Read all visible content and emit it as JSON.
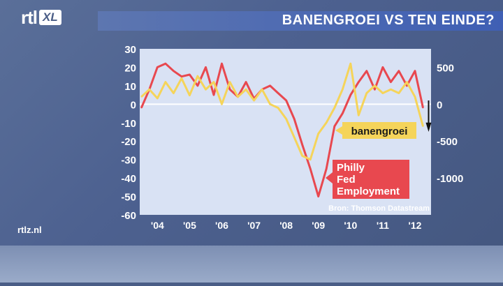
{
  "header": {
    "logo_main": "rtl",
    "logo_badge": "XL",
    "title": "BANENGROEI VS TEN EINDE?"
  },
  "watermark": "rtlz.nl",
  "colors": {
    "plot_bg": "#d9e2f4",
    "philly_line": "#e8484f",
    "banengroei_line": "#f5d45a",
    "philly_label_bg": "#e8484f",
    "banengroei_label_bg": "#f5d45a",
    "label_text_philly": "#ffffff",
    "label_text_banen": "#1a1a1a"
  },
  "chart_data": {
    "type": "line",
    "title": "BANENGROEI VS TEN EINDE?",
    "source": "Bron: Thomson Datastream",
    "grid": false,
    "x_ticks": [
      "'04",
      "'05",
      "'06",
      "'07",
      "'08",
      "'09",
      "'10",
      "'11",
      "'12"
    ],
    "x_tick_values": [
      2004,
      2005,
      2006,
      2007,
      2008,
      2009,
      2010,
      2011,
      2012
    ],
    "xlim": [
      2003.45,
      2012.5
    ],
    "y_left": {
      "ticks": [
        30,
        20,
        10,
        0,
        -10,
        -20,
        -30,
        -40,
        -50,
        -60
      ],
      "ylim": [
        -60,
        30
      ]
    },
    "y_right": {
      "ticks": [
        500,
        0,
        -500,
        -1000
      ],
      "ylim": [
        -1500,
        750
      ]
    },
    "zero_line": true,
    "series": [
      {
        "name": "Philly Fed Employment",
        "axis": "left",
        "x": [
          2003.5,
          2003.75,
          2004.0,
          2004.25,
          2004.5,
          2004.75,
          2005.0,
          2005.25,
          2005.5,
          2005.75,
          2006.0,
          2006.25,
          2006.5,
          2006.75,
          2007.0,
          2007.25,
          2007.5,
          2007.75,
          2008.0,
          2008.25,
          2008.5,
          2008.75,
          2009.0,
          2009.25,
          2009.5,
          2009.75,
          2010.0,
          2010.25,
          2010.5,
          2010.75,
          2011.0,
          2011.25,
          2011.5,
          2011.75,
          2012.0,
          2012.25
        ],
        "y": [
          -2,
          8,
          20,
          22,
          18,
          15,
          16,
          10,
          20,
          5,
          22,
          8,
          4,
          12,
          3,
          8,
          10,
          6,
          2,
          -8,
          -22,
          -35,
          -50,
          -35,
          -12,
          -5,
          5,
          12,
          18,
          8,
          20,
          12,
          18,
          10,
          18,
          -2
        ]
      },
      {
        "name": "banengroei",
        "axis": "right",
        "x": [
          2003.5,
          2003.75,
          2004.0,
          2004.25,
          2004.5,
          2004.75,
          2005.0,
          2005.25,
          2005.5,
          2005.75,
          2006.0,
          2006.25,
          2006.5,
          2006.75,
          2007.0,
          2007.25,
          2007.5,
          2007.75,
          2008.0,
          2008.25,
          2008.5,
          2008.75,
          2009.0,
          2009.25,
          2009.5,
          2009.75,
          2010.0,
          2010.25,
          2010.5,
          2010.75,
          2011.0,
          2011.25,
          2011.5,
          2011.75,
          2012.0,
          2012.25
        ],
        "y": [
          100,
          200,
          80,
          300,
          150,
          350,
          120,
          380,
          200,
          300,
          0,
          300,
          100,
          200,
          50,
          200,
          0,
          -50,
          -200,
          -450,
          -700,
          -750,
          -400,
          -250,
          -50,
          200,
          550,
          -150,
          150,
          250,
          150,
          200,
          150,
          300,
          100,
          -300
        ]
      }
    ],
    "labels": [
      "banengroei",
      "Philly Fed Employment"
    ]
  }
}
